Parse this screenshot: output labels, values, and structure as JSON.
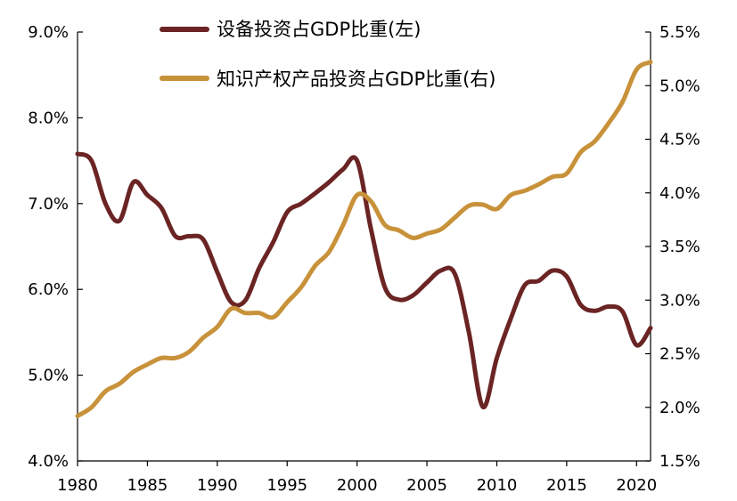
{
  "chart_data": {
    "type": "line",
    "title": "",
    "xlabel": "",
    "ylabel": "",
    "y2label": "",
    "xlim": [
      1980,
      2021
    ],
    "x_ticks": [
      "1980",
      "1985",
      "1990",
      "1995",
      "2000",
      "2005",
      "2010",
      "2015",
      "2020"
    ],
    "ylim": [
      4.0,
      9.0
    ],
    "y_ticks": [
      "4.0%",
      "5.0%",
      "6.0%",
      "7.0%",
      "8.0%",
      "9.0%"
    ],
    "y2lim": [
      1.5,
      5.5
    ],
    "y2_ticks": [
      "1.5%",
      "2.0%",
      "2.5%",
      "3.0%",
      "3.5%",
      "4.0%",
      "4.5%",
      "5.0%",
      "5.5%"
    ],
    "legend_position": "top-center",
    "grid": false,
    "series": [
      {
        "name": "设备投资占GDP比重(左)",
        "axis": "left",
        "color": "#6b2424",
        "x": [
          1980,
          1981,
          1982,
          1983,
          1984,
          1985,
          1986,
          1987,
          1988,
          1989,
          1990,
          1991,
          1992,
          1993,
          1994,
          1995,
          1996,
          1997,
          1998,
          1999,
          2000,
          2001,
          2002,
          2003,
          2004,
          2005,
          2006,
          2007,
          2008,
          2009,
          2010,
          2011,
          2012,
          2013,
          2014,
          2015,
          2016,
          2017,
          2018,
          2019,
          2020,
          2021
        ],
        "values": [
          7.58,
          7.5,
          7.0,
          6.8,
          7.25,
          7.1,
          6.95,
          6.62,
          6.62,
          6.58,
          6.2,
          5.85,
          5.87,
          6.25,
          6.55,
          6.9,
          7.0,
          7.12,
          7.25,
          7.4,
          7.5,
          6.7,
          6.02,
          5.88,
          5.93,
          6.08,
          6.22,
          6.18,
          5.5,
          4.63,
          5.2,
          5.66,
          6.05,
          6.1,
          6.22,
          6.15,
          5.82,
          5.75,
          5.8,
          5.74,
          5.35,
          5.55
        ]
      },
      {
        "name": "知识产权产品投资占GDP比重(右)",
        "axis": "right",
        "color": "#c8923a",
        "x": [
          1980,
          1981,
          1982,
          1983,
          1984,
          1985,
          1986,
          1987,
          1988,
          1989,
          1990,
          1991,
          1992,
          1993,
          1994,
          1995,
          1996,
          1997,
          1998,
          1999,
          2000,
          2001,
          2002,
          2003,
          2004,
          2005,
          2006,
          2007,
          2008,
          2009,
          2010,
          2011,
          2012,
          2013,
          2014,
          2015,
          2016,
          2017,
          2018,
          2019,
          2020,
          2021
        ],
        "values": [
          1.92,
          2.0,
          2.15,
          2.22,
          2.33,
          2.4,
          2.46,
          2.46,
          2.52,
          2.65,
          2.75,
          2.92,
          2.88,
          2.88,
          2.84,
          2.98,
          3.12,
          3.32,
          3.45,
          3.7,
          3.98,
          3.92,
          3.7,
          3.65,
          3.58,
          3.62,
          3.66,
          3.77,
          3.88,
          3.89,
          3.85,
          3.98,
          4.02,
          4.08,
          4.15,
          4.18,
          4.38,
          4.48,
          4.65,
          4.85,
          5.15,
          5.22
        ]
      }
    ]
  }
}
